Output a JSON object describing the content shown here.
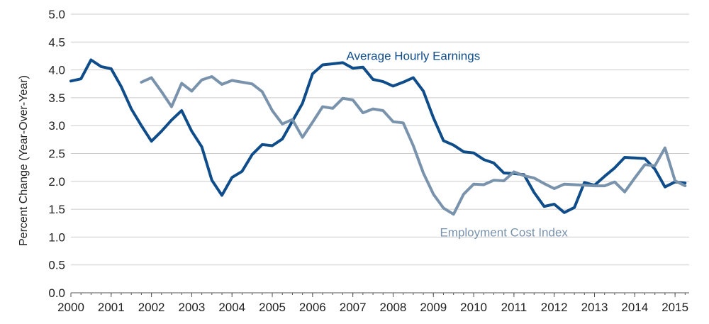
{
  "chart_data": {
    "type": "line",
    "ylabel": "Percent Change (Year-Over-Year)",
    "xlabel": "",
    "xlim": [
      2000,
      2015.35
    ],
    "ylim": [
      0,
      5
    ],
    "y_ticks": [
      "0.0",
      "0.5",
      "1.0",
      "1.5",
      "2.0",
      "2.5",
      "3.0",
      "3.5",
      "4.0",
      "4.5",
      "5.0"
    ],
    "x_ticks": [
      "2000",
      "2001",
      "2002",
      "2003",
      "2004",
      "2005",
      "2006",
      "2007",
      "2008",
      "2009",
      "2010",
      "2011",
      "2012",
      "2013",
      "2014",
      "2015"
    ],
    "grid": "horizontal",
    "series": [
      {
        "name": "Average Hourly Earnings",
        "color": "#0f4c8a",
        "x": [
          2000.0,
          2000.25,
          2000.5,
          2000.75,
          2001.0,
          2001.25,
          2001.5,
          2001.75,
          2002.0,
          2002.25,
          2002.5,
          2002.75,
          2003.0,
          2003.25,
          2003.5,
          2003.75,
          2004.0,
          2004.25,
          2004.5,
          2004.75,
          2005.0,
          2005.25,
          2005.5,
          2005.75,
          2006.0,
          2006.25,
          2006.5,
          2006.75,
          2007.0,
          2007.25,
          2007.5,
          2007.75,
          2008.0,
          2008.25,
          2008.5,
          2008.75,
          2009.0,
          2009.25,
          2009.5,
          2009.75,
          2010.0,
          2010.25,
          2010.5,
          2010.75,
          2011.0,
          2011.25,
          2011.5,
          2011.75,
          2012.0,
          2012.25,
          2012.5,
          2012.75,
          2013.0,
          2013.25,
          2013.5,
          2013.75,
          2014.0,
          2014.25,
          2014.5,
          2014.75,
          2015.0,
          2015.25
        ],
        "values": [
          3.8,
          3.84,
          4.18,
          4.06,
          4.02,
          3.7,
          3.3,
          3.0,
          2.72,
          2.9,
          3.1,
          3.27,
          2.9,
          2.62,
          2.02,
          1.75,
          2.07,
          2.18,
          2.48,
          2.66,
          2.64,
          2.76,
          3.08,
          3.4,
          3.93,
          4.09,
          4.11,
          4.13,
          4.03,
          4.05,
          3.83,
          3.79,
          3.71,
          3.78,
          3.86,
          3.62,
          3.14,
          2.73,
          2.65,
          2.53,
          2.51,
          2.39,
          2.33,
          2.15,
          2.14,
          2.12,
          1.8,
          1.55,
          1.59,
          1.44,
          1.53,
          1.98,
          1.93,
          2.09,
          2.24,
          2.43,
          2.42,
          2.41,
          2.22,
          1.9,
          1.99,
          1.97
        ]
      },
      {
        "name": "Employment Cost Index",
        "color": "#7a93ad",
        "x": [
          2001.75,
          2002.0,
          2002.25,
          2002.5,
          2002.75,
          2003.0,
          2003.25,
          2003.5,
          2003.75,
          2004.0,
          2004.25,
          2004.5,
          2004.75,
          2005.0,
          2005.25,
          2005.5,
          2005.75,
          2006.0,
          2006.25,
          2006.5,
          2006.75,
          2007.0,
          2007.25,
          2007.5,
          2007.75,
          2008.0,
          2008.25,
          2008.5,
          2008.75,
          2009.0,
          2009.25,
          2009.5,
          2009.75,
          2010.0,
          2010.25,
          2010.5,
          2010.75,
          2011.0,
          2011.25,
          2011.5,
          2011.75,
          2012.0,
          2012.25,
          2012.5,
          2012.75,
          2013.0,
          2013.25,
          2013.5,
          2013.75,
          2014.0,
          2014.25,
          2014.5,
          2014.75,
          2015.0,
          2015.25
        ],
        "values": [
          3.78,
          3.86,
          3.61,
          3.34,
          3.76,
          3.62,
          3.82,
          3.88,
          3.74,
          3.81,
          3.78,
          3.75,
          3.61,
          3.27,
          3.03,
          3.11,
          2.79,
          3.06,
          3.34,
          3.31,
          3.49,
          3.46,
          3.23,
          3.3,
          3.27,
          3.07,
          3.05,
          2.64,
          2.15,
          1.77,
          1.52,
          1.41,
          1.77,
          1.95,
          1.94,
          2.02,
          2.01,
          2.17,
          2.1,
          2.06,
          1.96,
          1.87,
          1.95,
          1.94,
          1.93,
          1.92,
          1.92,
          1.99,
          1.81,
          2.06,
          2.3,
          2.28,
          2.6,
          2.01,
          1.92
        ]
      }
    ],
    "annotations": [
      {
        "text": "Average Hourly Earnings",
        "x": 2008.5,
        "y": 4.18,
        "color": "#0f4c8a"
      },
      {
        "text": "Employment Cost Index",
        "x": 2010.75,
        "y": 1.01,
        "color": "#7a93ad"
      }
    ]
  }
}
